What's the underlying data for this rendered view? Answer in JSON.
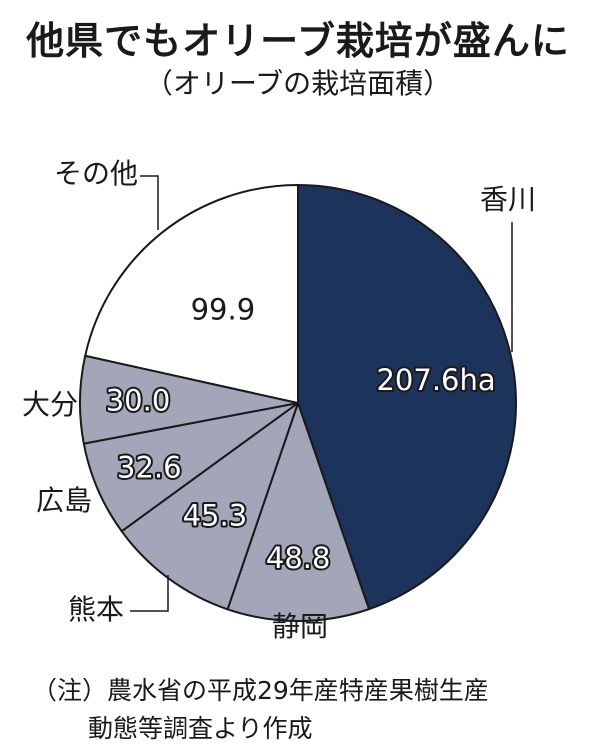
{
  "title": "他県でもオリーブ栽培が盛んに",
  "subtitle": "（オリーブの栽培面積）",
  "chart_data": {
    "type": "pie",
    "unit": "ha",
    "slices": [
      {
        "name": "香川",
        "value": 207.6,
        "label": "207.6ha",
        "color": "#1c335c"
      },
      {
        "name": "静岡",
        "value": 48.8,
        "label": "48.8",
        "color": "#a3a6b8"
      },
      {
        "name": "熊本",
        "value": 45.3,
        "label": "45.3",
        "color": "#a3a6b8"
      },
      {
        "name": "広島",
        "value": 32.6,
        "label": "32.6",
        "color": "#a3a6b8"
      },
      {
        "name": "大分",
        "value": 30.0,
        "label": "30.0",
        "color": "#a3a6b8"
      },
      {
        "name": "その他",
        "value": 99.9,
        "label": "99.9",
        "color": "#ffffff"
      }
    ]
  },
  "note": {
    "line1": "（注）農水省の平成29年産特産果樹生産",
    "line2": "動態等調査より作成"
  }
}
